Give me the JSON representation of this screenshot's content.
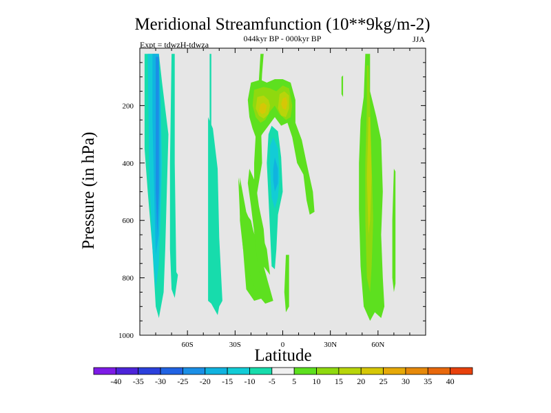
{
  "chart_data": {
    "type": "heatmap",
    "title": "Meridional Streamfunction (10**9kg/m-2)",
    "subtitle_left": "Expt = tdwzH-tdwza",
    "subtitle_center": "044kyr BP - 000kyr BP",
    "subtitle_right": "JJA",
    "xlabel": "Latitude",
    "ylabel": "Pressure (in hPa)",
    "xlim": [
      -90,
      90
    ],
    "ylim": [
      0,
      1000
    ],
    "y_reversed": true,
    "x_ticks": [
      {
        "value": -60,
        "label": "60S"
      },
      {
        "value": -30,
        "label": "30S"
      },
      {
        "value": 0,
        "label": "0"
      },
      {
        "value": 30,
        "label": "30N"
      },
      {
        "value": 60,
        "label": "60N"
      }
    ],
    "y_ticks": [
      {
        "value": 200,
        "label": "200"
      },
      {
        "value": 400,
        "label": "400"
      },
      {
        "value": 600,
        "label": "600"
      },
      {
        "value": 800,
        "label": "800"
      },
      {
        "value": 1000,
        "label": "1000"
      }
    ],
    "background_color": "#e6e6e6",
    "levels": [
      -40,
      -35,
      -30,
      -25,
      -20,
      -15,
      -10,
      -5,
      5,
      10,
      15,
      20,
      25,
      30,
      35,
      40
    ],
    "colorbar_labels": [
      "-40",
      "-35",
      "-30",
      "-25",
      "-20",
      "-15",
      "-10",
      "-5",
      "5",
      "10",
      "15",
      "20",
      "25",
      "30",
      "35",
      "40"
    ],
    "colorbar_colors": [
      "#7d1be6",
      "#4c24d9",
      "#2b40dc",
      "#2163e3",
      "#1b8fe6",
      "#10b3e0",
      "#12ccd6",
      "#17dcac",
      "#f0f0f0",
      "#5de01f",
      "#8fd90f",
      "#b8d50a",
      "#d6c706",
      "#e6a908",
      "#e6890a",
      "#e8680c",
      "#e8410c"
    ],
    "contour_regions": [
      {
        "value": -15,
        "color": "#17dcac",
        "points": [
          [
            -87,
            20
          ],
          [
            -78,
            20
          ],
          [
            -76,
            120
          ],
          [
            -72,
            300
          ],
          [
            -73,
            500
          ],
          [
            -74,
            700
          ],
          [
            -75,
            850
          ],
          [
            -78,
            940
          ],
          [
            -80,
            900
          ],
          [
            -82,
            700
          ],
          [
            -85,
            500
          ],
          [
            -87,
            350
          ]
        ]
      },
      {
        "value": -20,
        "color": "#12ccd6",
        "points": [
          [
            -85,
            20
          ],
          [
            -79,
            20
          ],
          [
            -77,
            180
          ],
          [
            -76,
            400
          ],
          [
            -77,
            600
          ],
          [
            -78,
            750
          ],
          [
            -80,
            840
          ],
          [
            -82,
            700
          ],
          [
            -84,
            450
          ]
        ]
      },
      {
        "value": -25,
        "color": "#10b3e0",
        "points": [
          [
            -82,
            20
          ],
          [
            -78,
            20
          ],
          [
            -77,
            200
          ],
          [
            -77,
            450
          ],
          [
            -78,
            650
          ],
          [
            -80,
            720
          ],
          [
            -81,
            500
          ],
          [
            -82,
            250
          ]
        ]
      },
      {
        "value": -30,
        "color": "#1b8fe6",
        "points": [
          [
            -80,
            30
          ],
          [
            -78,
            30
          ],
          [
            -78,
            250
          ],
          [
            -78,
            500
          ],
          [
            -79,
            650
          ],
          [
            -80,
            500
          ],
          [
            -80,
            250
          ]
        ]
      },
      {
        "value": -15,
        "color": "#17dcac",
        "points": [
          [
            -70,
            20
          ],
          [
            -68,
            20
          ],
          [
            -68,
            400
          ],
          [
            -67,
            780
          ],
          [
            -66,
            790
          ],
          [
            -67,
            830
          ],
          [
            -68,
            870
          ],
          [
            -70,
            840
          ],
          [
            -71,
            700
          ],
          [
            -71,
            400
          ]
        ]
      },
      {
        "value": -15,
        "color": "#17dcac",
        "points": [
          [
            -46,
            20
          ],
          [
            -45,
            20
          ],
          [
            -45,
            400
          ],
          [
            -44,
            800
          ],
          [
            -45,
            840
          ],
          [
            -46,
            800
          ],
          [
            -46,
            400
          ]
        ]
      },
      {
        "value": -15,
        "color": "#17dcac",
        "points": [
          [
            -47,
            240
          ],
          [
            -44,
            280
          ],
          [
            -41,
            420
          ],
          [
            -40,
            660
          ],
          [
            -38,
            880
          ],
          [
            -40,
            900
          ],
          [
            -41,
            930
          ],
          [
            -43,
            910
          ],
          [
            -45,
            890
          ],
          [
            -47,
            880
          ],
          [
            -47,
            600
          ],
          [
            -47,
            350
          ]
        ]
      },
      {
        "value": 5,
        "color": "#5de01f",
        "points": [
          [
            -28,
            450
          ],
          [
            -24,
            570
          ],
          [
            -20,
            600
          ],
          [
            -18,
            650
          ],
          [
            -14,
            720
          ],
          [
            -10,
            800
          ],
          [
            -8,
            860
          ],
          [
            -12,
            870
          ],
          [
            -18,
            880
          ],
          [
            -23,
            840
          ],
          [
            -25,
            700
          ],
          [
            -27,
            580
          ]
        ]
      },
      {
        "value": 5,
        "color": "#5de01f",
        "points": [
          [
            -14,
            20
          ],
          [
            -12,
            20
          ],
          [
            -13,
            90
          ],
          [
            -14,
            200
          ],
          [
            -13,
            400
          ],
          [
            -16,
            500
          ],
          [
            -18,
            560
          ],
          [
            -15,
            620
          ],
          [
            -10,
            700
          ],
          [
            -8,
            790
          ],
          [
            -12,
            760
          ],
          [
            -16,
            650
          ],
          [
            -18,
            520
          ],
          [
            -18,
            400
          ],
          [
            -17,
            300
          ],
          [
            -16,
            200
          ]
        ]
      },
      {
        "value": 5,
        "color": "#5de01f",
        "points": [
          [
            -27,
            450
          ],
          [
            -23,
            570
          ],
          [
            -20,
            610
          ],
          [
            -16,
            680
          ],
          [
            -13,
            740
          ],
          [
            -10,
            800
          ],
          [
            -8,
            840
          ],
          [
            -6,
            880
          ],
          [
            -11,
            890
          ],
          [
            -14,
            870
          ],
          [
            -17,
            840
          ],
          [
            -20,
            800
          ],
          [
            -25,
            700
          ],
          [
            -27,
            600
          ]
        ]
      },
      {
        "value": 5,
        "color": "#5de01f",
        "points": [
          [
            -20,
            120
          ],
          [
            -14,
            110
          ],
          [
            -10,
            120
          ],
          [
            -5,
            108
          ],
          [
            0,
            108
          ],
          [
            5,
            120
          ],
          [
            8,
            180
          ],
          [
            8,
            260
          ],
          [
            12,
            320
          ],
          [
            15,
            400
          ],
          [
            19,
            500
          ],
          [
            20,
            570
          ],
          [
            17,
            580
          ],
          [
            15,
            530
          ],
          [
            13,
            440
          ],
          [
            9,
            400
          ],
          [
            6,
            310
          ],
          [
            3,
            260
          ],
          [
            -1,
            270
          ],
          [
            -5,
            240
          ],
          [
            -9,
            270
          ],
          [
            -13,
            300
          ],
          [
            -15,
            320
          ],
          [
            -17,
            310
          ],
          [
            -19,
            280
          ],
          [
            -21,
            240
          ],
          [
            -22,
            180
          ]
        ]
      },
      {
        "value": 10,
        "color": "#8fd90f",
        "points": [
          [
            -18,
            145
          ],
          [
            -12,
            135
          ],
          [
            -8,
            140
          ],
          [
            -4,
            150
          ],
          [
            0,
            130
          ],
          [
            4,
            140
          ],
          [
            6,
            200
          ],
          [
            5,
            240
          ],
          [
            2,
            250
          ],
          [
            -2,
            230
          ],
          [
            -5,
            200
          ],
          [
            -8,
            220
          ],
          [
            -11,
            250
          ],
          [
            -14,
            260
          ],
          [
            -17,
            240
          ],
          [
            -19,
            200
          ]
        ]
      },
      {
        "value": 15,
        "color": "#b8d50a",
        "points": [
          [
            -16,
            170
          ],
          [
            -12,
            165
          ],
          [
            -9,
            180
          ],
          [
            -8,
            200
          ],
          [
            -9,
            230
          ],
          [
            -12,
            245
          ],
          [
            -15,
            235
          ],
          [
            -17,
            210
          ]
        ]
      },
      {
        "value": 15,
        "color": "#b8d50a",
        "points": [
          [
            -2,
            160
          ],
          [
            1,
            150
          ],
          [
            4,
            165
          ],
          [
            4,
            210
          ],
          [
            2,
            240
          ],
          [
            -1,
            235
          ],
          [
            -3,
            210
          ]
        ]
      },
      {
        "value": 20,
        "color": "#d6c706",
        "points": [
          [
            -14,
            195
          ],
          [
            -12,
            190
          ],
          [
            -10,
            200
          ],
          [
            -11,
            225
          ],
          [
            -13,
            230
          ],
          [
            -15,
            220
          ]
        ]
      },
      {
        "value": 20,
        "color": "#d6c706",
        "points": [
          [
            0,
            175
          ],
          [
            2,
            170
          ],
          [
            3,
            190
          ],
          [
            2,
            215
          ],
          [
            0,
            210
          ],
          [
            -1,
            195
          ]
        ]
      },
      {
        "value": -5,
        "color": "#17dcac",
        "points": [
          [
            -7,
            270
          ],
          [
            -3,
            290
          ],
          [
            -1,
            380
          ],
          [
            0,
            500
          ],
          [
            -3,
            580
          ],
          [
            -4,
            700
          ],
          [
            -5,
            770
          ],
          [
            -7,
            760
          ],
          [
            -8,
            640
          ],
          [
            -9,
            520
          ],
          [
            -10,
            400
          ],
          [
            -9,
            300
          ]
        ]
      },
      {
        "value": -10,
        "color": "#12ccd6",
        "points": [
          [
            -6,
            310
          ],
          [
            -3,
            350
          ],
          [
            -2,
            450
          ],
          [
            -3,
            520
          ],
          [
            -5,
            560
          ],
          [
            -7,
            520
          ],
          [
            -8,
            420
          ],
          [
            -8,
            340
          ]
        ]
      },
      {
        "value": -15,
        "color": "#10b3e0",
        "points": [
          [
            -5,
            380
          ],
          [
            -3,
            420
          ],
          [
            -3,
            470
          ],
          [
            -5,
            500
          ],
          [
            -6,
            460
          ],
          [
            -6,
            420
          ]
        ]
      },
      {
        "value": 5,
        "color": "#5de01f",
        "points": [
          [
            -21,
            420
          ],
          [
            -17,
            470
          ],
          [
            -15,
            550
          ],
          [
            -12,
            630
          ],
          [
            -11,
            700
          ],
          [
            -12,
            780
          ],
          [
            -14,
            800
          ],
          [
            -16,
            740
          ],
          [
            -18,
            640
          ],
          [
            -20,
            550
          ],
          [
            -22,
            470
          ]
        ]
      },
      {
        "value": 5,
        "color": "#5de01f",
        "points": [
          [
            2,
            720
          ],
          [
            4,
            720
          ],
          [
            4,
            900
          ],
          [
            2,
            920
          ],
          [
            1,
            850
          ]
        ]
      },
      {
        "value": 5,
        "color": "#5de01f",
        "points": [
          [
            37,
            100
          ],
          [
            38,
            95
          ],
          [
            38,
            170
          ],
          [
            37,
            160
          ]
        ]
      },
      {
        "value": 5,
        "color": "#5de01f",
        "points": [
          [
            52,
            20
          ],
          [
            55,
            20
          ],
          [
            55,
            150
          ],
          [
            59,
            240
          ],
          [
            62,
            320
          ],
          [
            63,
            500
          ],
          [
            62,
            650
          ],
          [
            63,
            800
          ],
          [
            64,
            900
          ],
          [
            62,
            940
          ],
          [
            58,
            920
          ],
          [
            55,
            950
          ],
          [
            51,
            900
          ],
          [
            49,
            760
          ],
          [
            48,
            560
          ],
          [
            48,
            400
          ],
          [
            49,
            250
          ],
          [
            51,
            170
          ]
        ]
      },
      {
        "value": 10,
        "color": "#8fd90f",
        "points": [
          [
            53,
            60
          ],
          [
            54,
            60
          ],
          [
            55,
            200
          ],
          [
            56,
            400
          ],
          [
            57,
            600
          ],
          [
            56,
            760
          ],
          [
            55,
            850
          ],
          [
            53,
            800
          ],
          [
            52,
            600
          ],
          [
            52,
            400
          ],
          [
            53,
            200
          ]
        ]
      },
      {
        "value": 15,
        "color": "#b8d50a",
        "points": [
          [
            54,
            240
          ],
          [
            55,
            240
          ],
          [
            56,
            450
          ],
          [
            55,
            600
          ],
          [
            54,
            650
          ],
          [
            53,
            450
          ]
        ]
      },
      {
        "value": 5,
        "color": "#5de01f",
        "points": [
          [
            70,
            420
          ],
          [
            71,
            430
          ],
          [
            71,
            820
          ],
          [
            70,
            850
          ],
          [
            69,
            800
          ],
          [
            69,
            600
          ]
        ]
      }
    ]
  }
}
